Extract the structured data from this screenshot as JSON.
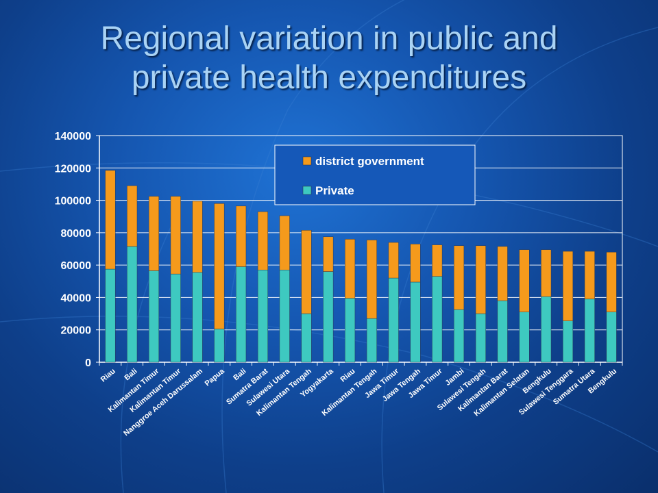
{
  "slide": {
    "title_line1": "Regional variation in public and",
    "title_line2": "private health expenditures"
  },
  "colors": {
    "private": "#3ec9c0",
    "district_government": "#f59a1c",
    "axis_line": "#ffffff",
    "plot_border": "#ffffff"
  },
  "chart_data": {
    "type": "bar",
    "stacked": true,
    "title": "",
    "xlabel": "",
    "ylabel": "",
    "ylim": [
      0,
      140000
    ],
    "yticks": [
      0,
      20000,
      40000,
      60000,
      80000,
      100000,
      120000,
      140000
    ],
    "grid": true,
    "legend_position": "top-center",
    "legend_order": [
      "district government",
      "Private"
    ],
    "categories": [
      "Riau",
      "Bali",
      "Kalimantan Timur",
      "Kalimantan Timur",
      "Nanggroe Aceh Darussalam",
      "Papua",
      "Bali",
      "Sumatra Barat",
      "Sulawesi Utara",
      "Kalimantan Tengah",
      "Yogyakarta",
      "Riau",
      "Kalimantan Tengah",
      "Jawa Timur",
      "Jawa Tengah",
      "Jawa Timur",
      "Jambi",
      "Sulawesi Tengah",
      "Kalimantan Barat",
      "Kalimantan Selatan",
      "Bengkulu",
      "Sulawesi Tenggara",
      "Sumatra Utara",
      "Bengkulu"
    ],
    "series": [
      {
        "name": "Private",
        "values": [
          57500,
          71500,
          56500,
          54500,
          55500,
          20500,
          59000,
          57000,
          57000,
          30000,
          56000,
          39500,
          27000,
          52000,
          49500,
          53000,
          32500,
          30000,
          38000,
          31000,
          40500,
          25500,
          39000,
          31000
        ]
      },
      {
        "name": "district government",
        "values": [
          61000,
          37500,
          46000,
          48000,
          44000,
          77500,
          37500,
          36000,
          33500,
          51500,
          21500,
          36500,
          48500,
          22000,
          23500,
          19500,
          39500,
          42000,
          33500,
          38500,
          29000,
          43000,
          29500,
          37000
        ]
      }
    ]
  }
}
